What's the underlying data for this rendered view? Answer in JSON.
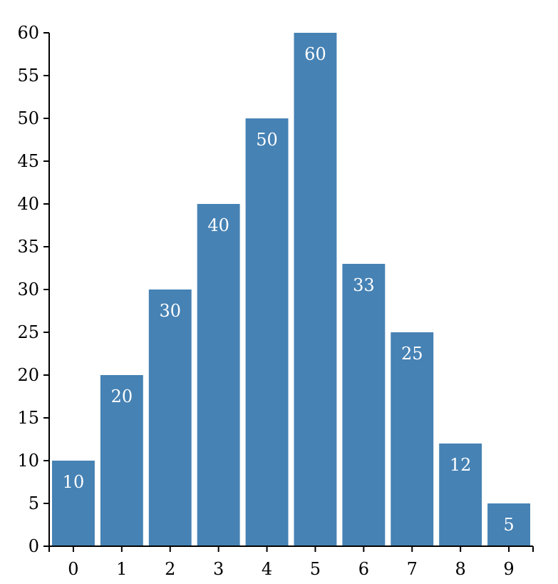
{
  "chart_data": {
    "type": "bar",
    "categories": [
      "0",
      "1",
      "2",
      "3",
      "4",
      "5",
      "6",
      "7",
      "8",
      "9"
    ],
    "values": [
      10,
      20,
      30,
      40,
      50,
      60,
      33,
      25,
      12,
      5
    ],
    "title": "",
    "xlabel": "",
    "ylabel": "",
    "ylim": [
      0,
      60
    ],
    "yticks": [
      0,
      5,
      10,
      15,
      20,
      25,
      30,
      35,
      40,
      45,
      50,
      55,
      60
    ],
    "grid": false,
    "bar_color": "#4682b4",
    "data_labels": true
  }
}
